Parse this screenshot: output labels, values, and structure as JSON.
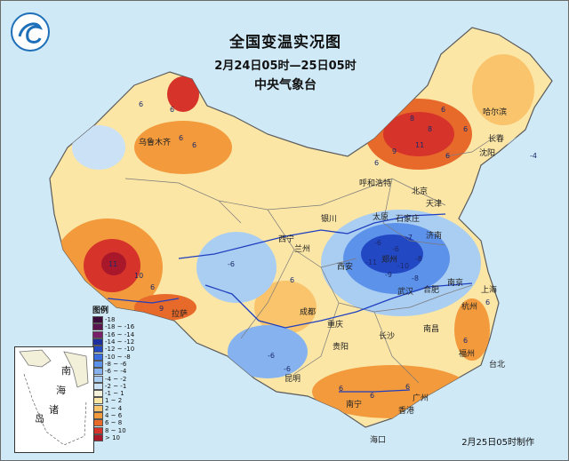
{
  "header": {
    "title": "全国变温实况图",
    "period": "2月24日05时—25日05时",
    "agency": "中央气象台"
  },
  "legend": {
    "title": "图例",
    "items": [
      {
        "label": "-18",
        "color": "#3b0a3a"
      },
      {
        "label": "-18 ~ -16",
        "color": "#5a1450"
      },
      {
        "label": "-16 ~ -14",
        "color": "#7a1f6a"
      },
      {
        "label": "-14 ~ -12",
        "color": "#1d2f9c"
      },
      {
        "label": "-12 ~ -10",
        "color": "#2348c4"
      },
      {
        "label": "-10 ~ -8",
        "color": "#3a6ee0"
      },
      {
        "label": "-8 ~ -6",
        "color": "#5c92ea"
      },
      {
        "label": "-6 ~ -4",
        "color": "#86b3ef"
      },
      {
        "label": "-4 ~ -2",
        "color": "#aacdf2"
      },
      {
        "label": "-2 ~ -1",
        "color": "#cbe1f6"
      },
      {
        "label": "-1 ~ 1",
        "color": "#f3f0d9"
      },
      {
        "label": "1 ~ 2",
        "color": "#fbe6a6"
      },
      {
        "label": "2 ~ 4",
        "color": "#f9c46b"
      },
      {
        "label": "4 ~ 6",
        "color": "#f29a3c"
      },
      {
        "label": "6 ~ 8",
        "color": "#e86a2a"
      },
      {
        "label": "8 ~ 10",
        "color": "#d6332a"
      },
      {
        "label": "> 10",
        "color": "#a8182a"
      }
    ]
  },
  "inset": {
    "label_1": "南",
    "label_2": "海",
    "label_3": "诸",
    "label_4": "岛"
  },
  "cities": [
    {
      "name": "乌鲁木齐"
    },
    {
      "name": "哈尔滨"
    },
    {
      "name": "长春"
    },
    {
      "name": "沈阳"
    },
    {
      "name": "呼和浩特"
    },
    {
      "name": "北京"
    },
    {
      "name": "天津"
    },
    {
      "name": "太原"
    },
    {
      "name": "石家庄"
    },
    {
      "name": "银川"
    },
    {
      "name": "西宁"
    },
    {
      "name": "兰州"
    },
    {
      "name": "济南"
    },
    {
      "name": "西安"
    },
    {
      "name": "郑州"
    },
    {
      "name": "合肥"
    },
    {
      "name": "南京"
    },
    {
      "name": "上海"
    },
    {
      "name": "杭州"
    },
    {
      "name": "武汉"
    },
    {
      "name": "成都"
    },
    {
      "name": "重庆"
    },
    {
      "name": "拉萨"
    },
    {
      "name": "长沙"
    },
    {
      "name": "南昌"
    },
    {
      "name": "贵阳"
    },
    {
      "name": "昆明"
    },
    {
      "name": "福州"
    },
    {
      "name": "台北"
    },
    {
      "name": "南宁"
    },
    {
      "name": "广州"
    },
    {
      "name": "香港"
    },
    {
      "name": "海口"
    }
  ],
  "values": [
    "6",
    "6",
    "6",
    "11",
    "6",
    "8",
    "8",
    "11",
    "9",
    "6",
    "6",
    "6",
    "6",
    "-6",
    "-6",
    "-7",
    "-10",
    "-8",
    "-9",
    "-11",
    "-8",
    "-6",
    "-6",
    "-6",
    "6",
    "6",
    "6",
    "-4",
    "6",
    "6",
    "6",
    "9",
    "10",
    "6"
  ],
  "footer": {
    "made": "2月25日05时制作"
  },
  "colors": {
    "sea": "#cfe9f6",
    "land_base": "#fbe6a6",
    "border": "#5b5b5b",
    "river": "#1f3fbf"
  }
}
